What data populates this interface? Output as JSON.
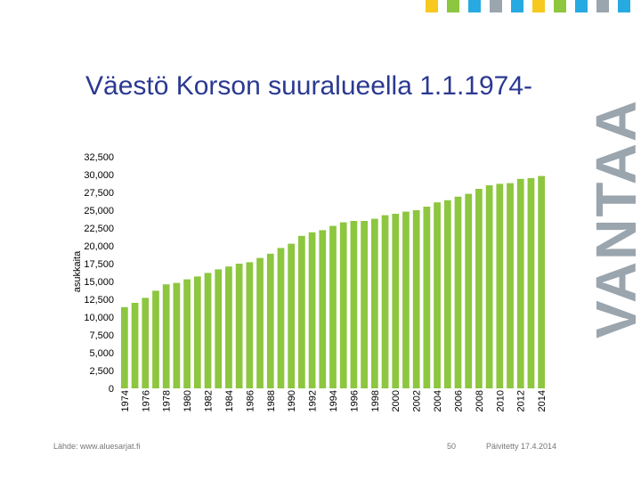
{
  "header": {
    "squares": [
      "#f7c81e",
      "#8dc63f",
      "#27aae1",
      "#9aa5ae",
      "#27aae1",
      "#f7c81e",
      "#8dc63f",
      "#27aae1",
      "#9aa5ae",
      "#27aae1"
    ]
  },
  "brand": {
    "text": "VANTAA",
    "color": "#9aa5ae"
  },
  "title": "Väestö Korson suuralueella 1.1.1974-",
  "chart_data": {
    "type": "bar",
    "title": "Väestö Korson suuralueella 1.1.1974-",
    "ylabel": "asukkaita",
    "xlabel": "",
    "ylim": [
      0,
      32500
    ],
    "yticks": [
      0,
      2500,
      5000,
      7500,
      10000,
      12500,
      15000,
      17500,
      20000,
      22500,
      25000,
      27500,
      30000,
      32500
    ],
    "ytick_labels": [
      "0",
      "2,500",
      "5,000",
      "7,500",
      "10,000",
      "12,500",
      "15,000",
      "17,500",
      "20,000",
      "22,500",
      "25,000",
      "27,500",
      "30,000",
      "32,500"
    ],
    "categories": [
      "1974",
      "1975",
      "1976",
      "1977",
      "1978",
      "1979",
      "1980",
      "1981",
      "1982",
      "1983",
      "1984",
      "1985",
      "1986",
      "1987",
      "1988",
      "1989",
      "1990",
      "1991",
      "1992",
      "1993",
      "1994",
      "1995",
      "1996",
      "1997",
      "1998",
      "1999",
      "2000",
      "2001",
      "2002",
      "2003",
      "2004",
      "2005",
      "2006",
      "2007",
      "2008",
      "2009",
      "2010",
      "2011",
      "2012",
      "2013",
      "2014"
    ],
    "xtick_labels": [
      "1974",
      "1976",
      "1978",
      "1980",
      "1982",
      "1984",
      "1986",
      "1988",
      "1990",
      "1992",
      "1994",
      "1996",
      "1998",
      "2000",
      "2002",
      "2004",
      "2006",
      "2008",
      "2010",
      "2012",
      "2014"
    ],
    "values": [
      11400,
      12000,
      12700,
      13700,
      14600,
      14800,
      15300,
      15700,
      16200,
      16700,
      17100,
      17500,
      17700,
      18300,
      18900,
      19700,
      20300,
      21400,
      21900,
      22200,
      22800,
      23300,
      23500,
      23500,
      23800,
      24300,
      24500,
      24800,
      25000,
      25500,
      26100,
      26400,
      26900,
      27300,
      28000,
      28500,
      28700,
      28800,
      29400,
      29500,
      29800
    ],
    "bar_color": "#8dc63f",
    "grid": false
  },
  "footer": {
    "source": "Lähde: www.aluesarjat.fi",
    "page": "50",
    "updated": "Päivitetty 17.4.2014"
  }
}
